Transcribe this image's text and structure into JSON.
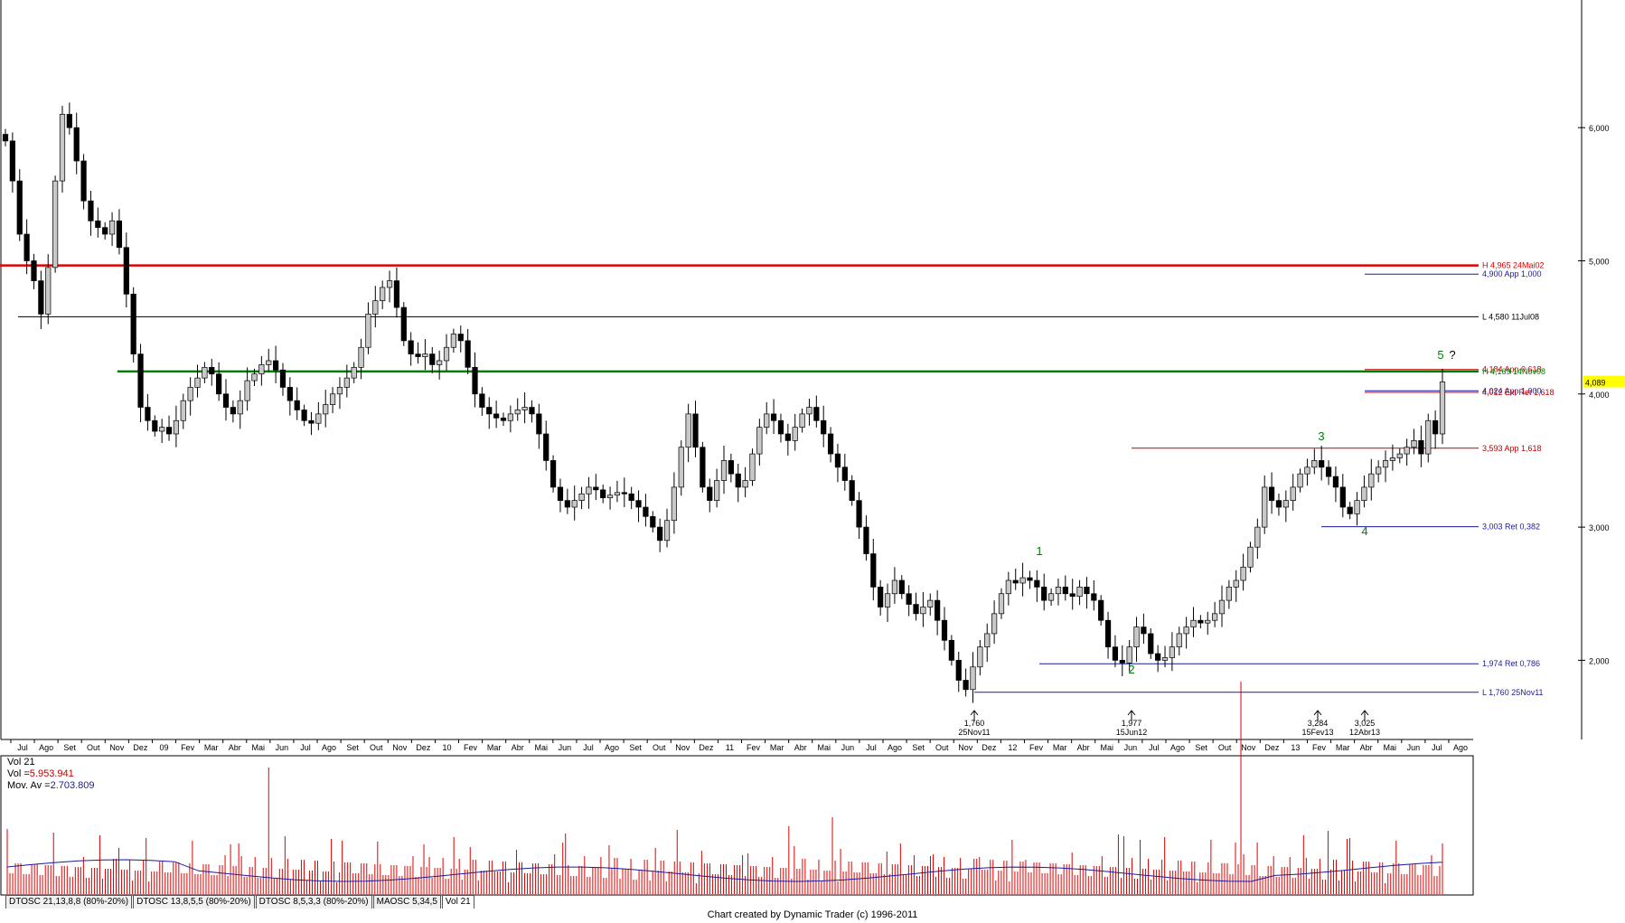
{
  "chart_data": {
    "type": "candlestick",
    "price_axis": {
      "ticks": [
        "6,000",
        "5,000",
        "4,000",
        "3,000",
        "2,000"
      ],
      "last_price": "4,089"
    },
    "time_axis": {
      "labels": [
        "Jul",
        "Ago",
        "Set",
        "Out",
        "Nov",
        "Dez",
        "09",
        "Fev",
        "Mar",
        "Abr",
        "Mai",
        "Jun",
        "Jul",
        "Ago",
        "Set",
        "Out",
        "Nov",
        "Dez",
        "10",
        "Fev",
        "Mar",
        "Abr",
        "Mai",
        "Jun",
        "Jul",
        "Ago",
        "Set",
        "Out",
        "Nov",
        "Dez",
        "11",
        "Fev",
        "Mar",
        "Abr",
        "Mai",
        "Jun",
        "Jul",
        "Ago",
        "Set",
        "Out",
        "Nov",
        "Dez",
        "12",
        "Fev",
        "Mar",
        "Abr",
        "Mai",
        "Jun",
        "Jul",
        "Ago",
        "Set",
        "Out",
        "Nov",
        "Dez",
        "13",
        "Fev",
        "Mar",
        "Abr",
        "Mai",
        "Jun",
        "Jul",
        "Ago"
      ]
    },
    "levels": [
      {
        "label": "H 4,965 24Mai02",
        "price": 4.965,
        "color": "#e00000"
      },
      {
        "label": "4,900 App 1,000",
        "price": 4.9,
        "color": "#1a1aa0"
      },
      {
        "label": "L 4,580 11Jul08",
        "price": 4.58,
        "color": "#000000"
      },
      {
        "label": "4,184 App 0,618",
        "price": 4.184,
        "color": "#c00000"
      },
      {
        "label": "H 4,169 14Nov08",
        "price": 4.169,
        "color": "#008000"
      },
      {
        "label": "4,024 App 1,000",
        "price": 4.024,
        "color": "#1a1aa0"
      },
      {
        "label": "4,012 Ext Ret 1,618",
        "price": 4.012,
        "color": "#c00000"
      },
      {
        "label": "3,593 App 1,618",
        "price": 3.593,
        "color": "#c00000"
      },
      {
        "label": "3,003 Ret 0,382",
        "price": 3.003,
        "color": "#1a1aa0"
      },
      {
        "label": "1,974 Ret 0,786",
        "price": 1.974,
        "color": "#1a1aa0"
      },
      {
        "label": "L 1,760 25Nov11",
        "price": 1.76,
        "color": "#1a1aa0"
      }
    ],
    "waves": [
      "1",
      "2",
      "3",
      "4",
      "5",
      "?"
    ],
    "pivots": [
      {
        "value": "1,760",
        "date": "25Nov11"
      },
      {
        "value": "1,977",
        "date": "15Jun12"
      },
      {
        "value": "3,284",
        "date": "15Fev13"
      },
      {
        "value": "3,025",
        "date": "12Abr13"
      }
    ],
    "candles_close": [
      5.9,
      5.6,
      5.2,
      5.0,
      4.85,
      4.6,
      4.95,
      5.6,
      6.1,
      6.0,
      5.75,
      5.45,
      5.3,
      5.25,
      5.2,
      5.3,
      5.1,
      4.75,
      4.3,
      3.9,
      3.8,
      3.72,
      3.75,
      3.7,
      3.8,
      3.95,
      4.05,
      4.12,
      4.2,
      4.15,
      4.0,
      3.9,
      3.85,
      3.95,
      4.1,
      4.15,
      4.22,
      4.25,
      4.18,
      4.05,
      3.95,
      3.88,
      3.8,
      3.78,
      3.85,
      3.92,
      4.0,
      4.05,
      4.12,
      4.2,
      4.35,
      4.6,
      4.7,
      4.8,
      4.85,
      4.65,
      4.4,
      4.3,
      4.28,
      4.3,
      4.22,
      4.25,
      4.35,
      4.45,
      4.4,
      4.2,
      4.0,
      3.9,
      3.85,
      3.82,
      3.8,
      3.85,
      3.88,
      3.9,
      3.85,
      3.7,
      3.5,
      3.3,
      3.2,
      3.15,
      3.2,
      3.25,
      3.3,
      3.28,
      3.22,
      3.24,
      3.26,
      3.25,
      3.2,
      3.15,
      3.08,
      3.0,
      2.9,
      3.05,
      3.3,
      3.6,
      3.85,
      3.6,
      3.3,
      3.2,
      3.35,
      3.5,
      3.4,
      3.3,
      3.35,
      3.55,
      3.75,
      3.85,
      3.8,
      3.7,
      3.65,
      3.75,
      3.85,
      3.9,
      3.8,
      3.7,
      3.55,
      3.45,
      3.35,
      3.2,
      3.0,
      2.8,
      2.55,
      2.4,
      2.5,
      2.6,
      2.5,
      2.42,
      2.35,
      2.4,
      2.45,
      2.3,
      2.15,
      2.0,
      1.85,
      1.78,
      1.95,
      2.1,
      2.2,
      2.35,
      2.5,
      2.6,
      2.58,
      2.62,
      2.6,
      2.55,
      2.45,
      2.5,
      2.55,
      2.5,
      2.48,
      2.55,
      2.5,
      2.45,
      2.3,
      2.1,
      2.0,
      1.98,
      2.1,
      2.25,
      2.2,
      2.05,
      2.0,
      2.02,
      2.1,
      2.2,
      2.25,
      2.3,
      2.28,
      2.3,
      2.35,
      2.45,
      2.55,
      2.6,
      2.7,
      2.85,
      3.0,
      3.3,
      3.2,
      3.15,
      3.2,
      3.3,
      3.4,
      3.45,
      3.5,
      3.45,
      3.38,
      3.3,
      3.15,
      3.1,
      3.2,
      3.3,
      3.4,
      3.45,
      3.5,
      3.52,
      3.55,
      3.6,
      3.65,
      3.55,
      3.8,
      3.7,
      4.09
    ]
  },
  "volume_panel": {
    "title": "Vol 21",
    "vol_label": "Vol =",
    "vol_value": "5.953.941",
    "avg_label": "Mov. Av =",
    "avg_value": "2.703.809"
  },
  "tabs": [
    "DTOSC 21,13,8,8 (80%-20%)",
    "DTOSC 13,8,5,5 (80%-20%)",
    "DTOSC 8,5,3,3 (80%-20%)",
    "MAOSC 5,34,5",
    "Vol 21"
  ],
  "credit": "Chart created by Dynamic Trader  (c) 1996-2011"
}
